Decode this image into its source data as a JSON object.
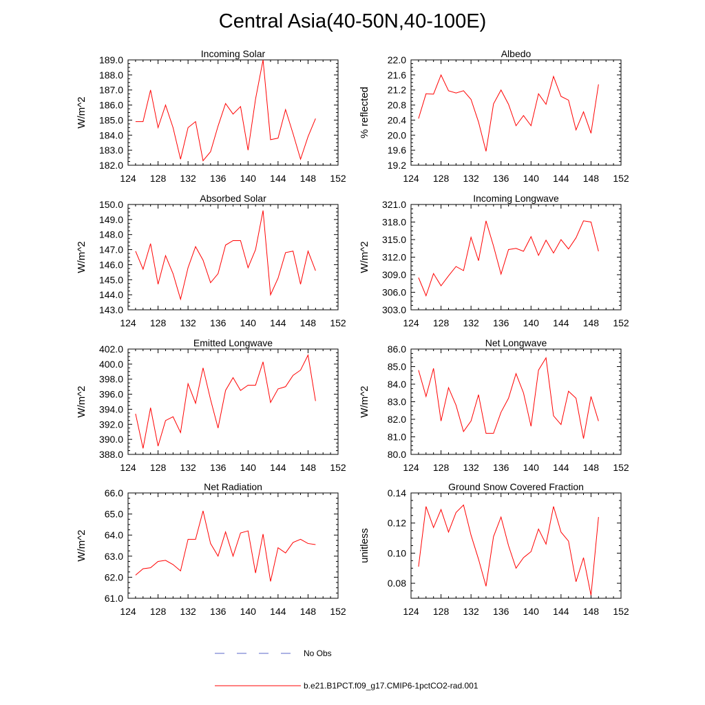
{
  "figure": {
    "title": "Central Asia(40-50N,40-100E)"
  },
  "colors": {
    "model": "#ff0000",
    "obs": "#5a64c8",
    "axis": "#000000"
  },
  "legend": {
    "obs_label": "No Obs",
    "model_label": "b.e21.B1PCT.f09_g17.CMIP6-1pctCO2-rad.001"
  },
  "chart_data": [
    {
      "type": "line",
      "title": "Incoming Solar",
      "xlabel": "",
      "ylabel": "W/m^2",
      "xlim": [
        124,
        152
      ],
      "ylim": [
        182.0,
        189.0
      ],
      "xticks": [
        124,
        128,
        132,
        136,
        140,
        144,
        148,
        152
      ],
      "yticks": [
        "182.0",
        "183.0",
        "184.0",
        "185.0",
        "186.0",
        "187.0",
        "188.0",
        "189.0"
      ],
      "x": [
        125,
        126,
        127,
        128,
        129,
        130,
        131,
        132,
        133,
        134,
        135,
        136,
        137,
        138,
        139,
        140,
        141,
        142,
        143,
        144,
        145,
        146,
        147,
        148,
        149
      ],
      "series": [
        {
          "values": [
            184.9,
            184.9,
            187.0,
            184.5,
            186.0,
            184.5,
            182.4,
            184.5,
            184.9,
            182.3,
            182.9,
            184.6,
            186.1,
            185.4,
            185.9,
            183.0,
            186.4,
            189.0,
            183.7,
            183.8,
            185.7,
            184.1,
            182.4,
            183.9,
            185.1
          ]
        }
      ]
    },
    {
      "type": "line",
      "title": "Albedo",
      "xlabel": "",
      "ylabel": "% reflected",
      "xlim": [
        124,
        152
      ],
      "ylim": [
        19.2,
        22.0
      ],
      "xticks": [
        124,
        128,
        132,
        136,
        140,
        144,
        148,
        152
      ],
      "yticks": [
        "19.2",
        "19.6",
        "20.0",
        "20.4",
        "20.8",
        "21.2",
        "21.6",
        "22.0"
      ],
      "x": [
        125,
        126,
        127,
        128,
        129,
        130,
        131,
        132,
        133,
        134,
        135,
        136,
        137,
        138,
        139,
        140,
        141,
        142,
        143,
        144,
        145,
        146,
        147,
        148,
        149
      ],
      "series": [
        {
          "values": [
            20.44,
            21.1,
            21.09,
            21.6,
            21.18,
            21.12,
            21.18,
            20.95,
            20.35,
            19.57,
            20.83,
            21.2,
            20.82,
            20.25,
            20.52,
            20.25,
            21.1,
            20.82,
            21.56,
            21.03,
            20.93,
            20.14,
            20.62,
            20.05,
            21.35
          ]
        }
      ]
    },
    {
      "type": "line",
      "title": "Absorbed Solar",
      "xlabel": "",
      "ylabel": "W/m^2",
      "xlim": [
        124,
        152
      ],
      "ylim": [
        143.0,
        150.0
      ],
      "xticks": [
        124,
        128,
        132,
        136,
        140,
        144,
        148,
        152
      ],
      "yticks": [
        "143.0",
        "144.0",
        "145.0",
        "146.0",
        "147.0",
        "148.0",
        "149.0",
        "150.0"
      ],
      "x": [
        125,
        126,
        127,
        128,
        129,
        130,
        131,
        132,
        133,
        134,
        135,
        136,
        137,
        138,
        139,
        140,
        141,
        142,
        143,
        144,
        145,
        146,
        147,
        148,
        149
      ],
      "series": [
        {
          "values": [
            146.9,
            145.7,
            147.4,
            144.7,
            146.6,
            145.4,
            143.7,
            145.8,
            147.2,
            146.3,
            144.8,
            145.4,
            147.3,
            147.6,
            147.6,
            145.8,
            147.0,
            149.6,
            144.0,
            145.1,
            146.8,
            146.9,
            144.7,
            146.9,
            145.6
          ]
        }
      ]
    },
    {
      "type": "line",
      "title": "Incoming Longwave",
      "xlabel": "",
      "ylabel": "W/m^2",
      "xlim": [
        124,
        152
      ],
      "ylim": [
        303.0,
        321.0
      ],
      "xticks": [
        124,
        128,
        132,
        136,
        140,
        144,
        148,
        152
      ],
      "yticks": [
        "303.0",
        "306.0",
        "309.0",
        "312.0",
        "315.0",
        "318.0",
        "321.0"
      ],
      "x": [
        125,
        126,
        127,
        128,
        129,
        130,
        131,
        132,
        133,
        134,
        135,
        136,
        137,
        138,
        139,
        140,
        141,
        142,
        143,
        144,
        145,
        146,
        147,
        148,
        149
      ],
      "series": [
        {
          "values": [
            308.5,
            305.4,
            309.2,
            307.1,
            308.8,
            310.4,
            309.7,
            315.4,
            311.4,
            318.2,
            313.9,
            309.1,
            313.3,
            313.5,
            313.0,
            315.5,
            312.3,
            314.9,
            312.7,
            315.0,
            313.4,
            315.3,
            318.2,
            318.0,
            313.0
          ]
        }
      ]
    },
    {
      "type": "line",
      "title": "Emitted Longwave",
      "xlabel": "",
      "ylabel": "W/m^2",
      "xlim": [
        124,
        152
      ],
      "ylim": [
        388.0,
        402.0
      ],
      "xticks": [
        124,
        128,
        132,
        136,
        140,
        144,
        148,
        152
      ],
      "yticks": [
        "388.0",
        "390.0",
        "392.0",
        "394.0",
        "396.0",
        "398.0",
        "400.0",
        "402.0"
      ],
      "x": [
        125,
        126,
        127,
        128,
        129,
        130,
        131,
        132,
        133,
        134,
        135,
        136,
        137,
        138,
        139,
        140,
        141,
        142,
        143,
        144,
        145,
        146,
        147,
        148,
        149
      ],
      "series": [
        {
          "values": [
            393.4,
            388.8,
            394.2,
            389.1,
            392.5,
            393.0,
            390.9,
            397.4,
            394.8,
            399.5,
            395.3,
            391.5,
            396.5,
            398.2,
            396.5,
            397.2,
            397.2,
            400.3,
            394.9,
            396.7,
            397.0,
            398.5,
            399.2,
            401.2,
            395.1
          ]
        }
      ]
    },
    {
      "type": "line",
      "title": "Net Longwave",
      "xlabel": "",
      "ylabel": "W/m^2",
      "xlim": [
        124,
        152
      ],
      "ylim": [
        80.0,
        86.0
      ],
      "xticks": [
        124,
        128,
        132,
        136,
        140,
        144,
        148,
        152
      ],
      "yticks": [
        "80.0",
        "81.0",
        "82.0",
        "83.0",
        "84.0",
        "85.0",
        "86.0"
      ],
      "x": [
        125,
        126,
        127,
        128,
        129,
        130,
        131,
        132,
        133,
        134,
        135,
        136,
        137,
        138,
        139,
        140,
        141,
        142,
        143,
        144,
        145,
        146,
        147,
        148,
        149
      ],
      "series": [
        {
          "values": [
            84.8,
            83.3,
            84.9,
            81.9,
            83.8,
            82.8,
            81.3,
            81.9,
            83.4,
            81.2,
            81.2,
            82.4,
            83.2,
            84.6,
            83.5,
            81.6,
            84.8,
            85.5,
            82.2,
            81.7,
            83.6,
            83.2,
            80.9,
            83.3,
            81.9
          ]
        }
      ]
    },
    {
      "type": "line",
      "title": "Net Radiation",
      "xlabel": "",
      "ylabel": "W/m^2",
      "xlim": [
        124,
        152
      ],
      "ylim": [
        61.0,
        66.0
      ],
      "xticks": [
        124,
        128,
        132,
        136,
        140,
        144,
        148,
        152
      ],
      "yticks": [
        "61.0",
        "62.0",
        "63.0",
        "64.0",
        "65.0",
        "66.0"
      ],
      "x": [
        125,
        126,
        127,
        128,
        129,
        130,
        131,
        132,
        133,
        134,
        135,
        136,
        137,
        138,
        139,
        140,
        141,
        142,
        143,
        144,
        145,
        146,
        147,
        148,
        149
      ],
      "series": [
        {
          "values": [
            62.1,
            62.4,
            62.45,
            62.75,
            62.8,
            62.6,
            62.3,
            63.8,
            63.8,
            65.15,
            63.6,
            63.0,
            64.15,
            63.0,
            64.1,
            64.2,
            62.2,
            64.05,
            61.8,
            63.4,
            63.15,
            63.65,
            63.8,
            63.6,
            63.55
          ]
        }
      ]
    },
    {
      "type": "line",
      "title": "Ground Snow Covered Fraction",
      "xlabel": "",
      "ylabel": "unitless",
      "xlim": [
        124,
        152
      ],
      "ylim": [
        0.07,
        0.14
      ],
      "xticks": [
        124,
        128,
        132,
        136,
        140,
        144,
        148,
        152
      ],
      "yticks": [
        "0.08",
        "0.10",
        "0.12",
        "0.14"
      ],
      "ytick_values": [
        0.08,
        0.1,
        0.12,
        0.14
      ],
      "x": [
        125,
        126,
        127,
        128,
        129,
        130,
        131,
        132,
        133,
        134,
        135,
        136,
        137,
        138,
        139,
        140,
        141,
        142,
        143,
        144,
        145,
        146,
        147,
        148,
        149
      ],
      "series": [
        {
          "values": [
            0.091,
            0.131,
            0.117,
            0.129,
            0.114,
            0.127,
            0.132,
            0.112,
            0.096,
            0.078,
            0.111,
            0.124,
            0.105,
            0.09,
            0.097,
            0.101,
            0.116,
            0.106,
            0.131,
            0.114,
            0.108,
            0.081,
            0.097,
            0.072,
            0.124
          ]
        }
      ]
    }
  ]
}
